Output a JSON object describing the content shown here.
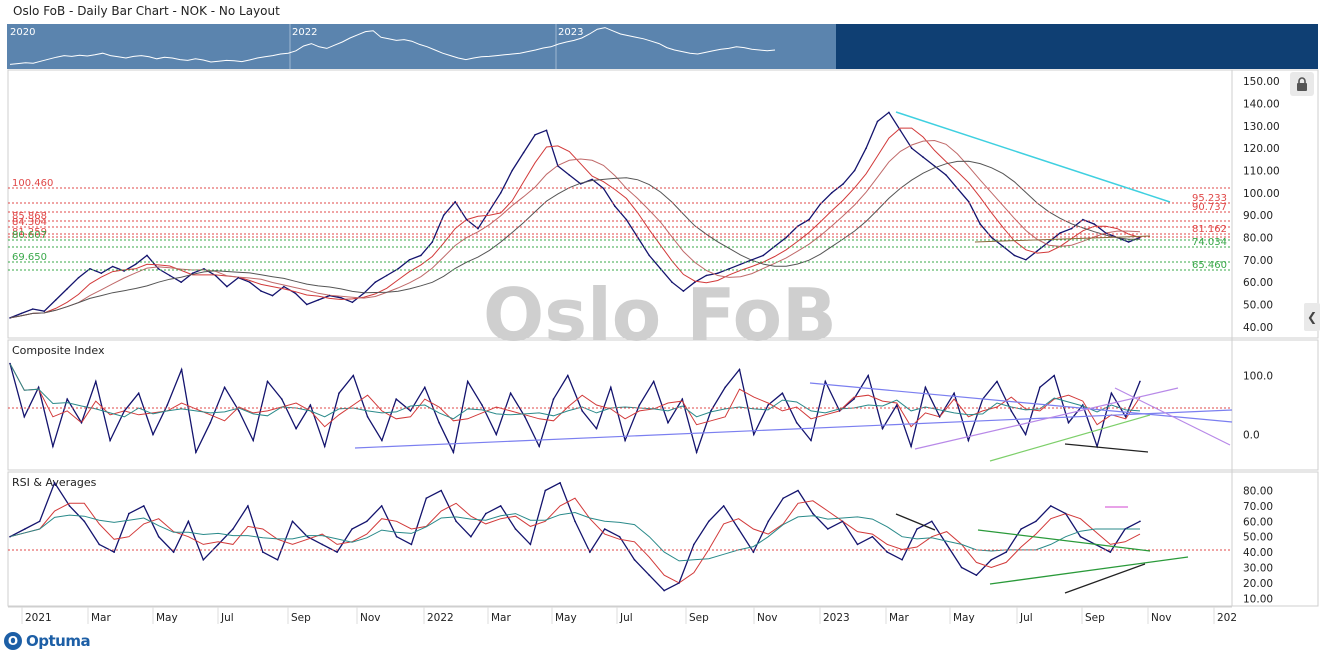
{
  "header": {
    "title": "Oslo FoB - Daily Bar Chart - NOK - No Layout"
  },
  "watermark": "Oslo FoB",
  "logo": {
    "text": "Optuma"
  },
  "navigator": {
    "years": [
      "2020",
      "2022",
      "2023"
    ]
  },
  "colors": {
    "price": "#14146e",
    "ma_red": "#d23a3a",
    "ma_dark": "#555555",
    "fib_red": "#e04848",
    "fib_green": "#3aa84a",
    "nav_bg": "#5b84ae",
    "nav_dark": "#0f3f73",
    "trend_cyan": "#3fd0e0",
    "trend_blue": "#7b7ff0",
    "trend_violet": "#b889e8",
    "trend_green": "#2a9a3a"
  },
  "chart_data": [
    {
      "type": "line",
      "panel": "price",
      "title": "",
      "ylim": [
        35,
        155
      ],
      "y_ticks": [
        "150.00",
        "140.00",
        "130.00",
        "120.00",
        "110.00",
        "100.00",
        "90.00",
        "80.00",
        "70.00",
        "60.00",
        "50.00",
        "40.00"
      ],
      "x_ticks": [
        "2021",
        "Mar",
        "May",
        "Jul",
        "Sep",
        "Nov",
        "2022",
        "Mar",
        "May",
        "Jul",
        "Sep",
        "Nov",
        "2023",
        "Mar",
        "May",
        "Jul",
        "Sep",
        "Nov",
        "202"
      ],
      "series": [
        {
          "values": [
            44,
            46,
            48,
            47,
            52,
            57,
            62,
            66,
            64,
            67,
            65,
            68,
            72,
            66,
            63,
            60,
            64,
            66,
            63,
            58,
            62,
            60,
            56,
            54,
            58,
            55,
            50,
            52,
            54,
            53,
            51,
            55,
            60,
            63,
            66,
            70,
            72,
            78,
            90,
            96,
            88,
            84,
            92,
            100,
            110,
            118,
            126,
            128,
            112,
            108,
            104,
            106,
            102,
            94,
            88,
            80,
            72,
            66,
            60,
            56,
            60,
            63,
            64,
            66,
            68,
            70,
            72,
            76,
            80,
            85,
            88,
            95,
            100,
            104,
            110,
            120,
            132,
            136,
            128,
            120,
            116,
            112,
            108,
            102,
            96,
            86,
            80,
            76,
            72,
            70,
            74,
            78,
            82,
            84,
            88,
            86,
            82,
            80,
            78,
            80
          ]
        }
      ],
      "levels_red": [
        "100.460",
        "95.233",
        "90.737",
        "85.868",
        "81.162",
        "84.304",
        "81.259"
      ],
      "levels_green": [
        "74.034",
        "69.650",
        "65.460",
        "80.607"
      ]
    },
    {
      "type": "line",
      "panel": "composite",
      "title": "Composite Index",
      "ylim": [
        -60,
        160
      ],
      "y_ticks": [
        "100.0",
        "0.0"
      ],
      "series": [
        {
          "values": [
            120,
            30,
            80,
            -20,
            60,
            20,
            90,
            -10,
            40,
            70,
            0,
            50,
            110,
            -30,
            20,
            80,
            40,
            -10,
            90,
            60,
            10,
            50,
            -20,
            70,
            100,
            30,
            -10,
            60,
            40,
            80,
            20,
            -30,
            90,
            50,
            0,
            70,
            30,
            -20,
            60,
            100,
            40,
            10,
            80,
            -10,
            50,
            90,
            20,
            60,
            -30,
            40,
            80,
            110,
            0,
            50,
            70,
            20,
            -10,
            90,
            40,
            60,
            100,
            10,
            50,
            -20,
            80,
            30,
            70,
            -10,
            60,
            90,
            40,
            0,
            80,
            100,
            20,
            50,
            -20,
            70,
            30,
            90
          ]
        }
      ]
    },
    {
      "type": "line",
      "panel": "rsi",
      "title": "RSI & Averages",
      "ylim": [
        5,
        92
      ],
      "y_ticks": [
        "80.00",
        "70.00",
        "60.00",
        "50.00",
        "40.00",
        "30.00",
        "20.00",
        "10.00"
      ],
      "series": [
        {
          "values": [
            50,
            55,
            60,
            85,
            70,
            60,
            45,
            40,
            65,
            70,
            50,
            40,
            60,
            35,
            45,
            55,
            70,
            40,
            35,
            60,
            50,
            45,
            40,
            55,
            60,
            70,
            50,
            45,
            75,
            80,
            60,
            50,
            65,
            70,
            55,
            45,
            80,
            85,
            60,
            40,
            55,
            50,
            35,
            25,
            15,
            20,
            45,
            60,
            70,
            55,
            40,
            60,
            75,
            80,
            65,
            55,
            60,
            45,
            50,
            40,
            35,
            55,
            60,
            45,
            30,
            25,
            35,
            40,
            55,
            60,
            70,
            65,
            50,
            45,
            40,
            55,
            60
          ]
        }
      ]
    }
  ]
}
